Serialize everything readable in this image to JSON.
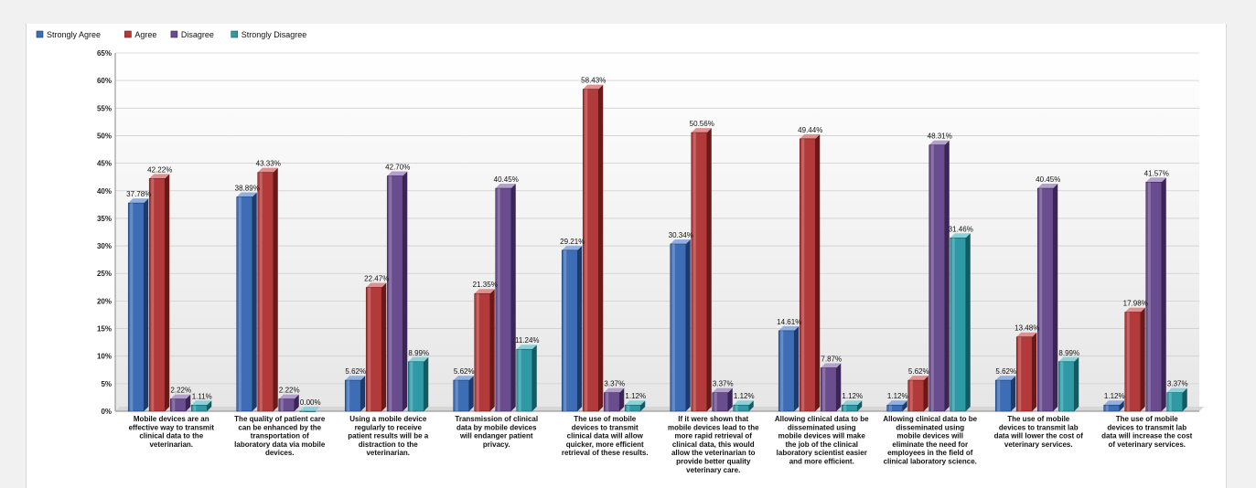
{
  "chart_data": {
    "type": "bar",
    "legend_position": "top-left",
    "grid": true,
    "ylim": [
      0,
      65
    ],
    "y_ticks": [
      "0%",
      "5%",
      "10%",
      "15%",
      "20%",
      "25%",
      "30%",
      "35%",
      "40%",
      "45%",
      "50%",
      "55%",
      "60%",
      "65%"
    ],
    "y_tick_values": [
      0,
      5,
      10,
      15,
      20,
      25,
      30,
      35,
      40,
      45,
      50,
      55,
      60,
      65
    ],
    "categories": [
      [
        "Mobile devices are an",
        "effective way to transmit",
        "clinical data to the",
        "veterinarian."
      ],
      [
        "The quality of patient care",
        "can be enhanced by the",
        "transportation of",
        "laboratory data via mobile",
        "devices."
      ],
      [
        "Using a mobile device",
        "regularly to receive",
        "patient results will be a",
        "distraction to the",
        "veterinarian."
      ],
      [
        "Transmission of clinical",
        "data by mobile devices",
        "will endanger patient",
        "privacy."
      ],
      [
        "The use of mobile",
        "devices to transmit",
        "clinical data will allow",
        "quicker, more efficient",
        "retrieval of these results."
      ],
      [
        "If it were shown that",
        "mobile devices lead to the",
        "more rapid retrieval of",
        "clinical data, this would",
        "allow the veterinarian to",
        "provide better quality",
        "veterinary care."
      ],
      [
        "Allowing clinical data to be",
        "disseminated using",
        "mobile devices will make",
        "the job of the clinical",
        "laboratory scientist easier",
        "and more efficient."
      ],
      [
        "Allowing clinical data to be",
        "disseminated using",
        "mobile devices will",
        "eliminate the need for",
        "employees in the field of",
        "clinical laboratory science."
      ],
      [
        "The use of mobile",
        "devices to transmit lab",
        "data will lower the cost of",
        "veterinary services."
      ],
      [
        "The use of mobile",
        "devices to transmit lab",
        "data will increase the cost",
        "of veterinary services."
      ]
    ],
    "series": [
      {
        "name": "Strongly Agree",
        "color": "#3d6db5",
        "dark": "#1d3a6a",
        "light": "#8fb0e0",
        "values": [
          37.78,
          38.89,
          5.62,
          5.62,
          29.21,
          30.34,
          14.61,
          1.12,
          5.62,
          1.12
        ],
        "labels": [
          "37.78%",
          "38.89%",
          "5.62%",
          "5.62%",
          "29.21%",
          "30.34%",
          "14.61%",
          "1.12%",
          "5.62%",
          "1.12%"
        ]
      },
      {
        "name": "Agree",
        "color": "#b23a3a",
        "dark": "#6a1818",
        "light": "#e09090",
        "values": [
          42.22,
          43.33,
          22.47,
          21.35,
          58.43,
          50.56,
          49.44,
          5.62,
          13.48,
          17.98
        ],
        "labels": [
          "42.22%",
          "43.33%",
          "22.47%",
          "21.35%",
          "58.43%",
          "50.56%",
          "49.44%",
          "5.62%",
          "13.48%",
          "17.98%"
        ]
      },
      {
        "name": "Disagree",
        "color": "#6a4d8e",
        "dark": "#3a2556",
        "light": "#b3a0cc",
        "values": [
          2.22,
          2.22,
          42.7,
          40.45,
          3.37,
          3.37,
          7.87,
          48.31,
          40.45,
          41.57
        ],
        "labels": [
          "2.22%",
          "2.22%",
          "42.70%",
          "40.45%",
          "3.37%",
          "3.37%",
          "7.87%",
          "48.31%",
          "40.45%",
          "41.57%"
        ]
      },
      {
        "name": "Strongly Disagree",
        "color": "#2f9aa6",
        "dark": "#145a62",
        "light": "#8ad2da",
        "values": [
          1.11,
          0.0,
          8.99,
          11.24,
          1.12,
          1.12,
          1.12,
          31.46,
          8.99,
          3.37
        ],
        "labels": [
          "1.11%",
          "0.00%",
          "8.99%",
          "11.24%",
          "1.12%",
          "1.12%",
          "1.12%",
          "31.46%",
          "8.99%",
          "3.37%"
        ]
      }
    ]
  }
}
